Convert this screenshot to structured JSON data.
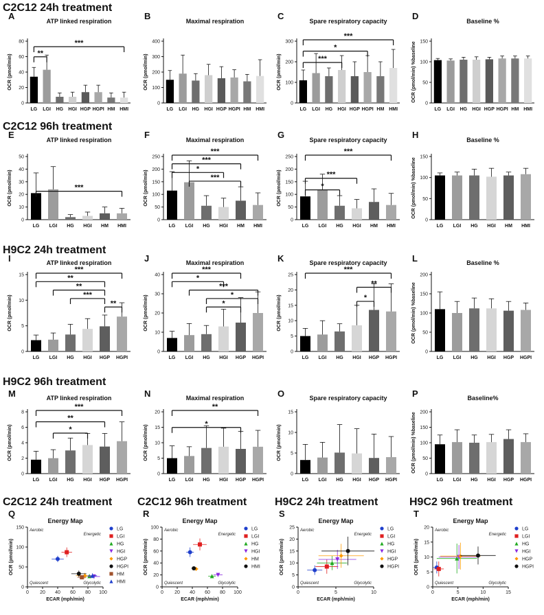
{
  "headers": [
    {
      "text": "C2C12 24h treatment",
      "x": 4,
      "y": 16
    },
    {
      "text": "C2C12 96h treatment",
      "x": 4,
      "y": 189
    },
    {
      "text": "H9C2 24h treatment",
      "x": 4,
      "y": 369
    },
    {
      "text": "H9C2 96h treatment",
      "x": 4,
      "y": 561
    },
    {
      "text": "C2C12 24h treatment",
      "x": 4,
      "y": 736
    },
    {
      "text": "C2C12 96h treatment",
      "x": 200,
      "y": 736
    },
    {
      "text": "H9C2 24h treatment",
      "x": 400,
      "y": 736
    },
    {
      "text": "H9C2 96h treatment",
      "x": 596,
      "y": 736
    }
  ],
  "chart_data": [
    {
      "type": "bar",
      "panel": "A",
      "title": "ATP linked respiration",
      "ylabel": "OCR (pmol/min)",
      "ylim": [
        0,
        80
      ],
      "yticks": [
        0,
        20,
        40,
        60,
        80
      ],
      "categories": [
        "LG",
        "LGI",
        "HG",
        "HGI",
        "HGP",
        "HGPI",
        "HM",
        "HMI"
      ],
      "values": [
        34,
        43,
        8,
        8,
        14,
        14,
        7,
        7
      ],
      "errors": [
        12,
        19,
        5,
        6,
        9,
        9,
        6,
        7
      ],
      "annotations": [
        "**",
        "***"
      ]
    },
    {
      "type": "bar",
      "panel": "B",
      "title": "Maximal respiration",
      "ylabel": "OCR (pmol/min)",
      "ylim": [
        0,
        400
      ],
      "yticks": [
        0,
        100,
        200,
        300,
        400
      ],
      "categories": [
        "LG",
        "LGI",
        "HG",
        "HGI",
        "HGP",
        "HGPI",
        "HM",
        "HMI"
      ],
      "values": [
        150,
        190,
        145,
        180,
        160,
        165,
        140,
        175
      ],
      "errors": [
        60,
        120,
        45,
        70,
        75,
        50,
        45,
        105
      ],
      "annotations": []
    },
    {
      "type": "bar",
      "panel": "C",
      "title": "Spare respiratory capacity",
      "ylabel": "OCR (pmol/min)",
      "ylim": [
        0,
        300
      ],
      "yticks": [
        0,
        100,
        200,
        300
      ],
      "categories": [
        "LG",
        "LGI",
        "HG",
        "HGI",
        "HGP",
        "HGPI",
        "HM",
        "HMI"
      ],
      "values": [
        110,
        145,
        130,
        160,
        130,
        150,
        130,
        170
      ],
      "errors": [
        50,
        95,
        40,
        70,
        70,
        80,
        70,
        90
      ],
      "annotations": [
        "***",
        "*",
        "***"
      ]
    },
    {
      "type": "bar",
      "panel": "D",
      "title": "Baseline %",
      "ylabel": "OCR (pmol/min) %baseline",
      "ylim": [
        0,
        150
      ],
      "yticks": [
        0,
        50,
        100,
        150
      ],
      "categories": [
        "LG",
        "LGI",
        "HG",
        "HGI",
        "HGP",
        "HGPI",
        "HM",
        "HMI"
      ],
      "values": [
        104,
        103,
        105,
        105,
        106,
        108,
        108,
        108
      ],
      "errors": [
        4,
        4,
        6,
        7,
        5,
        6,
        6,
        6
      ],
      "annotations": []
    },
    {
      "type": "bar",
      "panel": "E",
      "title": "ATP linked respiration",
      "ylabel": "OCR (pmol/min)",
      "ylim": [
        0,
        50
      ],
      "yticks": [
        0,
        10,
        20,
        30,
        40,
        50
      ],
      "categories": [
        "LG",
        "LGI",
        "HG",
        "HGI",
        "HM",
        "HMI"
      ],
      "values": [
        21,
        24,
        2,
        3,
        5,
        5
      ],
      "errors": [
        16,
        18,
        2,
        3,
        5,
        4
      ],
      "annotations": [
        "***"
      ]
    },
    {
      "type": "bar",
      "panel": "F",
      "title": "Maximal respiration",
      "ylabel": "OCR (pmol/min)",
      "ylim": [
        0,
        250
      ],
      "yticks": [
        0,
        50,
        100,
        150,
        200,
        250
      ],
      "categories": [
        "LG",
        "LGI",
        "HG",
        "HGI",
        "HM",
        "HMI"
      ],
      "values": [
        115,
        148,
        55,
        50,
        75,
        58
      ],
      "errors": [
        75,
        85,
        40,
        35,
        55,
        48
      ],
      "annotations": [
        "***",
        "***",
        "*",
        "***"
      ]
    },
    {
      "type": "bar",
      "panel": "G",
      "title": "Spare respiratory capacity",
      "ylabel": "OCR (pmol/min)",
      "ylim": [
        0,
        250
      ],
      "yticks": [
        0,
        50,
        100,
        150,
        200,
        250
      ],
      "categories": [
        "LG",
        "LGI",
        "HG",
        "HGI",
        "HM",
        "HMI"
      ],
      "values": [
        92,
        118,
        55,
        45,
        70,
        58
      ],
      "errors": [
        60,
        62,
        40,
        35,
        52,
        46
      ],
      "annotations": [
        "*",
        "***",
        "***"
      ]
    },
    {
      "type": "bar",
      "panel": "H",
      "title": "Baseline %",
      "ylabel": "OCR (pmol/min) %baseline",
      "ylim": [
        0,
        150
      ],
      "yticks": [
        0,
        50,
        100,
        150
      ],
      "categories": [
        "LG",
        "LGI",
        "HG",
        "HGI",
        "HM",
        "HMI"
      ],
      "values": [
        105,
        105,
        105,
        102,
        105,
        108
      ],
      "errors": [
        6,
        8,
        15,
        20,
        8,
        14
      ],
      "annotations": []
    },
    {
      "type": "bar",
      "panel": "I",
      "title": "ATP linked respiration",
      "ylabel": "OCR (pmol/min)",
      "ylim": [
        0,
        15
      ],
      "yticks": [
        0,
        5,
        10,
        15
      ],
      "categories": [
        "LG",
        "LGI",
        "HG",
        "HGI",
        "HGP",
        "HGPI"
      ],
      "values": [
        2.2,
        2.3,
        3.3,
        4.4,
        4.9,
        6.8
      ],
      "errors": [
        1,
        1.3,
        2,
        2,
        2.2,
        2.7
      ],
      "annotations": [
        "***",
        "**",
        "**",
        "***",
        "**"
      ]
    },
    {
      "type": "bar",
      "panel": "J",
      "title": "Maximal respiration",
      "ylabel": "OCR (pmol/min)",
      "ylim": [
        0,
        40
      ],
      "yticks": [
        0,
        10,
        20,
        30,
        40
      ],
      "categories": [
        "LG",
        "LGI",
        "HG",
        "HGI",
        "HGP",
        "HGPI"
      ],
      "values": [
        7,
        8.5,
        9,
        13,
        15,
        20
      ],
      "errors": [
        3.5,
        6,
        4.5,
        9,
        13,
        11
      ],
      "annotations": [
        "***",
        "*",
        "***",
        "*",
        "*"
      ]
    },
    {
      "type": "bar",
      "panel": "K",
      "title": "Spare respiratory capacity",
      "ylabel": "OCR (pmol/min)",
      "ylim": [
        0,
        25
      ],
      "yticks": [
        0,
        5,
        10,
        15,
        20,
        25
      ],
      "categories": [
        "LG",
        "LGI",
        "HG",
        "HGI",
        "HGP",
        "HGPI"
      ],
      "values": [
        5,
        5.5,
        6.5,
        8.5,
        13.5,
        13
      ],
      "errors": [
        2.5,
        4.5,
        2.5,
        6.5,
        8.5,
        9
      ],
      "annotations": [
        "***",
        "**",
        "*"
      ]
    },
    {
      "type": "bar",
      "panel": "L",
      "title": "Baseline %",
      "ylabel": "OCR (pmol/min) %baseline",
      "ylim": [
        0,
        200
      ],
      "yticks": [
        0,
        50,
        100,
        150,
        200
      ],
      "categories": [
        "LG",
        "LGI",
        "HG",
        "HGI",
        "HGP",
        "HGPI"
      ],
      "values": [
        110,
        100,
        112,
        112,
        106,
        108
      ],
      "errors": [
        45,
        30,
        27,
        25,
        24,
        18
      ],
      "annotations": []
    },
    {
      "type": "bar",
      "panel": "M",
      "title": "ATP linked respiration",
      "ylabel": "OCR (pmol/min)",
      "ylim": [
        0,
        8
      ],
      "yticks": [
        0,
        2,
        4,
        6,
        8
      ],
      "categories": [
        "LG",
        "LGI",
        "HG",
        "HGI",
        "HGP",
        "HGPI"
      ],
      "values": [
        1.8,
        2,
        3,
        3.7,
        3.5,
        4.2
      ],
      "errors": [
        1.1,
        1.1,
        1.6,
        1.5,
        1.7,
        2.5
      ],
      "annotations": [
        "***",
        "**",
        "*"
      ]
    },
    {
      "type": "bar",
      "panel": "N",
      "title": "Maximal respiration",
      "ylabel": "OCR (pmol/min)",
      "ylim": [
        0,
        20
      ],
      "yticks": [
        0,
        5,
        10,
        15,
        20
      ],
      "categories": [
        "LG",
        "LGI",
        "HG",
        "HGI",
        "HGP",
        "HGPI"
      ],
      "values": [
        5,
        5.7,
        8.3,
        8.7,
        8,
        8.7
      ],
      "errors": [
        4,
        3,
        7.2,
        6,
        5.7,
        5.3
      ],
      "annotations": [
        "**",
        "*"
      ]
    },
    {
      "type": "bar",
      "panel": "O",
      "title": "Spare respiratory capacity",
      "ylabel": "OCR (pmol/min)",
      "ylim": [
        0,
        15
      ],
      "yticks": [
        0,
        5,
        10,
        15
      ],
      "categories": [
        "LG",
        "LGI",
        "HG",
        "HGI",
        "HGP",
        "HGPI"
      ],
      "values": [
        3.3,
        3.9,
        5.1,
        4.9,
        3.8,
        4
      ],
      "errors": [
        3.8,
        3.7,
        6.8,
        6,
        5.8,
        5
      ],
      "annotations": []
    },
    {
      "type": "bar",
      "panel": "P",
      "title": "Baseline%",
      "ylabel": "OCR (pmol/min) %baseline",
      "ylim": [
        0,
        200
      ],
      "yticks": [
        0,
        50,
        100,
        150,
        200
      ],
      "categories": [
        "LG",
        "LGI",
        "HG",
        "HGI",
        "HGP",
        "HGPI"
      ],
      "values": [
        95,
        102,
        100,
        102,
        112,
        102
      ],
      "errors": [
        30,
        40,
        25,
        25,
        30,
        27
      ],
      "annotations": []
    },
    {
      "type": "scatter",
      "panel": "Q",
      "title": "Energy Map",
      "xlabel": "ECAR (mph/min)",
      "ylabel": "OCR (pmol/min)",
      "xlim": [
        0,
        100
      ],
      "ylim": [
        0,
        150
      ],
      "xticks": [
        0,
        20,
        40,
        60,
        80,
        100
      ],
      "yticks": [
        0,
        50,
        100,
        150
      ],
      "quadrants": [
        "Aerobic",
        "Energetic",
        "Quiescent",
        "Glycolytic"
      ],
      "series": [
        {
          "name": "LG",
          "color": "#1f3fcc",
          "marker": "circle",
          "x": 40,
          "y": 70,
          "ex": 8,
          "ey": 8
        },
        {
          "name": "LGI",
          "color": "#e02020",
          "marker": "square",
          "x": 52,
          "y": 87,
          "ex": 7,
          "ey": 12
        },
        {
          "name": "HG",
          "color": "#22aa22",
          "marker": "triangle",
          "x": 82,
          "y": 27,
          "ex": 8,
          "ey": 5
        },
        {
          "name": "HGI",
          "color": "#8a2be2",
          "marker": "tri-down",
          "x": 88,
          "y": 26,
          "ex": 8,
          "ey": 6
        },
        {
          "name": "HGP",
          "color": "#ff9900",
          "marker": "diamond",
          "x": 76,
          "y": 28,
          "ex": 12,
          "ey": 7
        },
        {
          "name": "HGPI",
          "color": "#111111",
          "marker": "circle",
          "x": 68,
          "y": 33,
          "ex": 10,
          "ey": 8
        },
        {
          "name": "HM",
          "color": "#a0522d",
          "marker": "square",
          "x": 72,
          "y": 24,
          "ex": 6,
          "ey": 5
        },
        {
          "name": "HMI",
          "color": "#1f3fcc",
          "marker": "triangle",
          "x": 86,
          "y": 28,
          "ex": 6,
          "ey": 6
        }
      ]
    },
    {
      "type": "scatter",
      "panel": "R",
      "title": "Energy Map",
      "xlabel": "ECAR (mph/min)",
      "ylabel": "OCR (pmol/min)",
      "xlim": [
        0,
        100
      ],
      "ylim": [
        0,
        100
      ],
      "xticks": [
        0,
        20,
        40,
        60,
        80,
        100
      ],
      "yticks": [
        0,
        20,
        40,
        60,
        80,
        100
      ],
      "quadrants": [
        "Aerobic",
        "Energetic",
        "Quiescent",
        "Glycolytic"
      ],
      "series": [
        {
          "name": "LG",
          "color": "#1f3fcc",
          "marker": "circle",
          "x": 37,
          "y": 58,
          "ex": 5,
          "ey": 8
        },
        {
          "name": "LGI",
          "color": "#e02020",
          "marker": "square",
          "x": 50,
          "y": 71,
          "ex": 9,
          "ey": 10
        },
        {
          "name": "HG",
          "color": "#22aa22",
          "marker": "triangle",
          "x": 66,
          "y": 18,
          "ex": 5,
          "ey": 3
        },
        {
          "name": "HGI",
          "color": "#8a2be2",
          "marker": "tri-down",
          "x": 74,
          "y": 20,
          "ex": 6,
          "ey": 3
        },
        {
          "name": "HM",
          "color": "#ff9900",
          "marker": "diamond",
          "x": 45,
          "y": 30,
          "ex": 3,
          "ey": 2
        },
        {
          "name": "HMI",
          "color": "#111111",
          "marker": "circle",
          "x": 42,
          "y": 31,
          "ex": 3,
          "ey": 2
        }
      ]
    },
    {
      "type": "scatter",
      "panel": "S",
      "title": "Energy Map",
      "xlabel": "ECAR (mph/min)",
      "ylabel": "OCR (pmol/min)",
      "xlim": [
        0,
        10
      ],
      "ylim": [
        0,
        25
      ],
      "xticks": [
        0,
        5,
        10
      ],
      "yticks": [
        0,
        5,
        10,
        15,
        20,
        25
      ],
      "quadrants": [
        "Aerobic",
        "Energetic",
        "Quiescent",
        "Glycolytic"
      ],
      "series": [
        {
          "name": "LG",
          "color": "#1f3fcc",
          "marker": "circle",
          "x": 2.2,
          "y": 7,
          "ex": 1,
          "ey": 2
        },
        {
          "name": "LGI",
          "color": "#e02020",
          "marker": "square",
          "x": 3.8,
          "y": 8.5,
          "ex": 1.5,
          "ey": 3
        },
        {
          "name": "HG",
          "color": "#22aa22",
          "marker": "triangle",
          "x": 4.5,
          "y": 10,
          "ex": 2,
          "ey": 3
        },
        {
          "name": "HGI",
          "color": "#8a2be2",
          "marker": "tri-down",
          "x": 5.2,
          "y": 11.5,
          "ex": 2.5,
          "ey": 4
        },
        {
          "name": "HGP",
          "color": "#ff9900",
          "marker": "diamond",
          "x": 5.7,
          "y": 13,
          "ex": 3,
          "ey": 5
        },
        {
          "name": "HGPI",
          "color": "#111111",
          "marker": "circle",
          "x": 6.6,
          "y": 15,
          "ex": 3.5,
          "ey": 6
        }
      ]
    },
    {
      "type": "scatter",
      "panel": "T",
      "title": "Energy Map",
      "xlabel": "ECAR (mph/min)",
      "ylabel": "OCR (pmol/min)",
      "xlim": [
        0,
        15
      ],
      "ylim": [
        0,
        20
      ],
      "xticks": [
        0,
        5,
        10,
        15
      ],
      "yticks": [
        0,
        5,
        10,
        15,
        20
      ],
      "quadrants": [
        "Aerobic",
        "Energetic",
        "Quiescent",
        "Glycolytic"
      ],
      "series": [
        {
          "name": "LG",
          "color": "#1f3fcc",
          "marker": "circle",
          "x": 0.8,
          "y": 6.5,
          "ex": 0.7,
          "ey": 2
        },
        {
          "name": "LGI",
          "color": "#e02020",
          "marker": "square",
          "x": 1.2,
          "y": 6,
          "ex": 1,
          "ey": 2.5
        },
        {
          "name": "HG",
          "color": "#22aa22",
          "marker": "triangle",
          "x": 4.8,
          "y": 9.5,
          "ex": 4,
          "ey": 5
        },
        {
          "name": "HGI",
          "color": "#8a2be2",
          "marker": "tri-down",
          "x": 5.2,
          "y": 10,
          "ex": 4,
          "ey": 4
        },
        {
          "name": "HGP",
          "color": "#ff9900",
          "marker": "diamond",
          "x": 5.5,
          "y": 10.3,
          "ex": 4,
          "ey": 4.5
        },
        {
          "name": "HGPI",
          "color": "#111111",
          "marker": "circle",
          "x": 9,
          "y": 10.5,
          "ex": 3.5,
          "ey": 3
        }
      ]
    }
  ]
}
